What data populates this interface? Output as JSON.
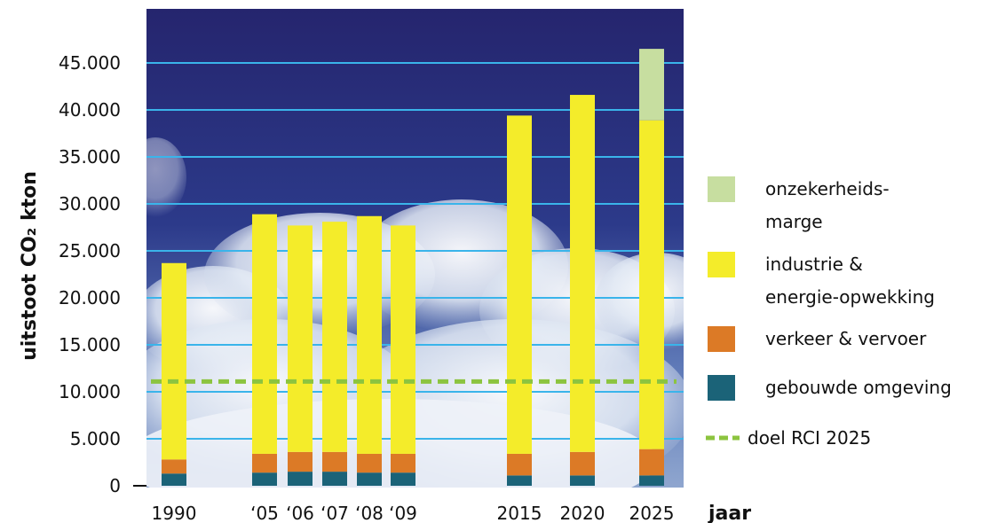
{
  "chart_data": {
    "type": "bar",
    "stacked": true,
    "title": "",
    "xlabel": "jaar",
    "ylabel": "uitstoot CO₂ kton",
    "ylim": [
      0,
      47500
    ],
    "yticks": [
      0,
      5000,
      10000,
      15000,
      20000,
      25000,
      30000,
      35000,
      40000,
      45000
    ],
    "ytick_labels": [
      "0",
      "5.000",
      "10.000",
      "15.000",
      "20.000",
      "25.000",
      "30.000",
      "35.000",
      "40.000",
      "45.000"
    ],
    "categories": [
      "1990",
      "'05",
      "'06",
      "'07",
      "'08",
      "'09",
      "2015",
      "2020",
      "2025"
    ],
    "category_labels": [
      "1990",
      "‘05",
      "‘06",
      "‘07",
      "‘08",
      "‘09",
      "2015",
      "2020",
      "2025"
    ],
    "grid": true,
    "background": "sky with clouds",
    "legend_position": "right",
    "series": [
      {
        "name": "gebouwde omgeving",
        "color": "#1b6378",
        "values": [
          1300,
          1400,
          1500,
          1500,
          1400,
          1400,
          1100,
          1100,
          1100
        ]
      },
      {
        "name": "verkeer & vervoer",
        "color": "#dc7a26",
        "values": [
          1500,
          2000,
          2100,
          2100,
          2000,
          2000,
          2300,
          2500,
          2800
        ]
      },
      {
        "name": "industrie & energie-opwekking",
        "color": "#f4ec2a",
        "values": [
          20900,
          25500,
          24100,
          24500,
          25300,
          24300,
          36000,
          38000,
          35000
        ]
      },
      {
        "name": "onzekerheids-marge",
        "color": "#c7dea0",
        "values": [
          0,
          0,
          0,
          0,
          0,
          0,
          0,
          0,
          7600
        ]
      }
    ],
    "reference_line": {
      "name": "doel RCI 2025",
      "value": 11100,
      "color": "#8cc43f",
      "style": "dashed"
    },
    "legend": [
      {
        "label_lines": [
          "onzekerheids-",
          "marge"
        ],
        "color": "#c7dea0",
        "kind": "box"
      },
      {
        "label_lines": [
          "industrie &",
          "energie-opwekking"
        ],
        "color": "#f4ec2a",
        "kind": "box"
      },
      {
        "label_lines": [
          "verkeer & vervoer"
        ],
        "color": "#dc7a26",
        "kind": "box"
      },
      {
        "label_lines": [
          "gebouwde omgeving"
        ],
        "color": "#1b6378",
        "kind": "box"
      },
      {
        "label_lines": [
          "doel RCI 2025"
        ],
        "color": "#8cc43f",
        "kind": "dash"
      }
    ]
  }
}
